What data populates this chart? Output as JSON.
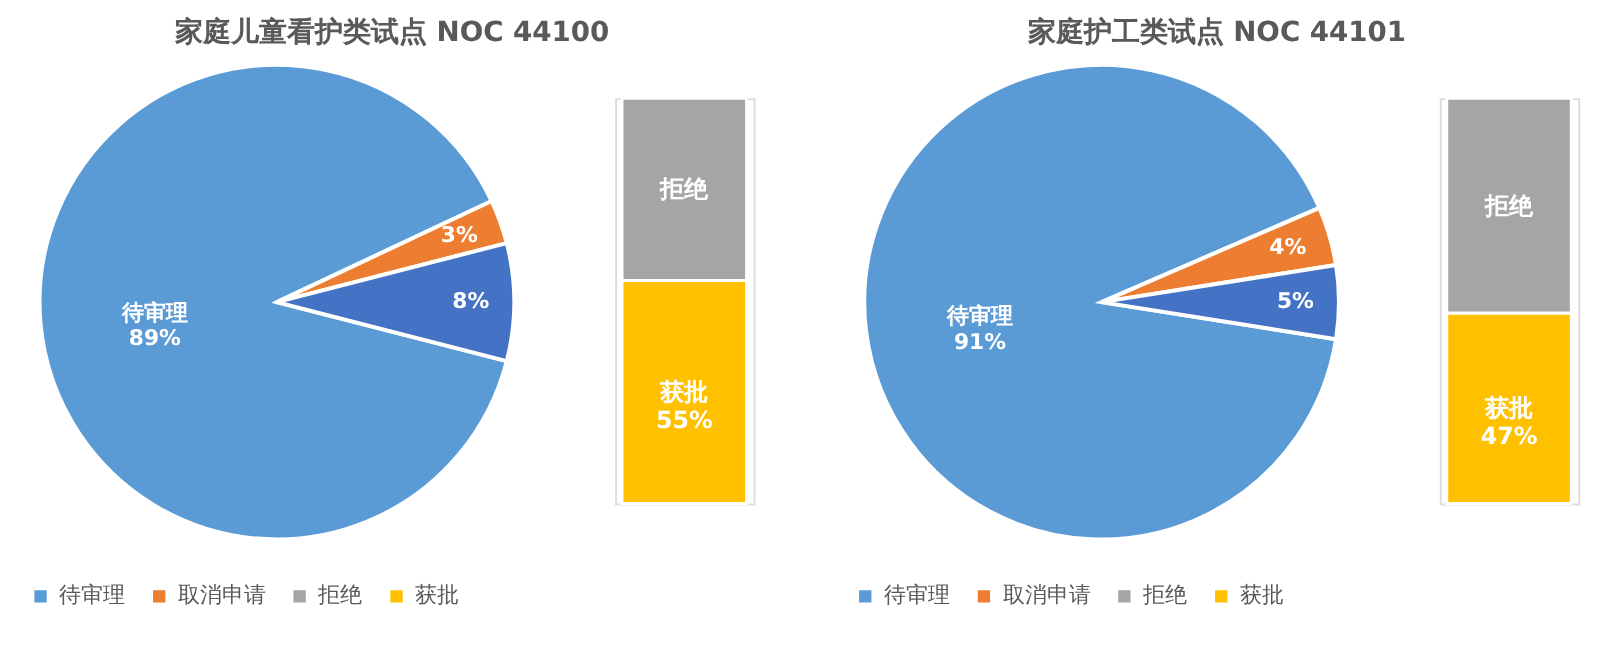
{
  "chart_data": [
    {
      "type": "pie",
      "title": "家庭儿童看护类试点 NOC 44100",
      "categories": [
        "待审理",
        "取消申请",
        null
      ],
      "values": [
        89,
        3,
        8
      ],
      "colors": [
        "#5b9bd5",
        "#ed7d31",
        "#4472c4"
      ],
      "value_labels": [
        "待审理\n89%",
        "3%",
        "8%"
      ],
      "legend": "bottom"
    },
    {
      "type": "bar",
      "tick_labels": false,
      "stacked": true,
      "categories": [
        null
      ],
      "legend": "bottom",
      "series": [
        {
          "name": "获批",
          "color": "#ffc000",
          "values": [
            55
          ],
          "value_labels": [
            "获批\n55%"
          ]
        },
        {
          "name": "拒绝",
          "color": "#a5a5a5",
          "values": [
            45
          ],
          "value_labels": [
            "拒绝"
          ]
        }
      ]
    },
    {
      "type": "pie",
      "title": "家庭护工类试点 NOC 44101",
      "categories": [
        "待审理",
        "取消申请",
        null
      ],
      "values": [
        91,
        4,
        5
      ],
      "colors": [
        "#5b9bd5",
        "#ed7d31",
        "#4472c4"
      ],
      "value_labels": [
        "待审理\n91%",
        "4%",
        "5%"
      ],
      "legend": "bottom"
    },
    {
      "type": "bar",
      "tick_labels": false,
      "stacked": true,
      "categories": [
        null
      ],
      "legend": "bottom",
      "series": [
        {
          "name": "获批",
          "color": "#ffc000",
          "values": [
            47
          ],
          "value_labels": [
            "获批\n47%"
          ]
        },
        {
          "name": "拒绝",
          "color": "#a5a5a5",
          "values": [
            53
          ],
          "value_labels": [
            "拒绝"
          ]
        }
      ]
    }
  ]
}
